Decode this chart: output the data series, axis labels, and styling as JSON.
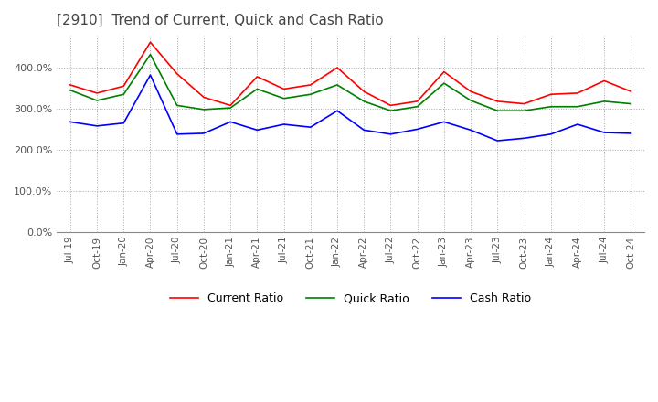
{
  "title": "[2910]  Trend of Current, Quick and Cash Ratio",
  "title_fontsize": 11,
  "title_color": "#444444",
  "background_color": "#ffffff",
  "plot_background_color": "#ffffff",
  "grid_color": "#aaaaaa",
  "ylim": [
    0,
    480
  ],
  "yticks": [
    0,
    100,
    200,
    300,
    400
  ],
  "ytick_labels": [
    "0.0%",
    "100.0%",
    "200.0%",
    "300.0%",
    "400.0%"
  ],
  "x_labels": [
    "Jul-19",
    "Oct-19",
    "Jan-20",
    "Apr-20",
    "Jul-20",
    "Oct-20",
    "Jan-21",
    "Apr-21",
    "Jul-21",
    "Oct-21",
    "Jan-22",
    "Apr-22",
    "Jul-22",
    "Oct-22",
    "Jan-23",
    "Apr-23",
    "Jul-23",
    "Oct-23",
    "Jan-24",
    "Apr-24",
    "Jul-24",
    "Oct-24"
  ],
  "current_ratio": [
    358,
    338,
    355,
    462,
    385,
    328,
    308,
    378,
    348,
    358,
    400,
    342,
    308,
    318,
    390,
    342,
    318,
    312,
    335,
    338,
    368,
    342
  ],
  "quick_ratio": [
    345,
    320,
    335,
    432,
    308,
    298,
    302,
    348,
    325,
    335,
    358,
    318,
    295,
    305,
    362,
    320,
    295,
    295,
    305,
    305,
    318,
    312
  ],
  "cash_ratio": [
    268,
    258,
    265,
    382,
    238,
    240,
    268,
    248,
    262,
    255,
    295,
    248,
    238,
    250,
    268,
    248,
    222,
    228,
    238,
    262,
    242,
    240
  ],
  "current_color": "#ff0000",
  "quick_color": "#008000",
  "cash_color": "#0000ff",
  "line_width": 1.2,
  "legend_labels": [
    "Current Ratio",
    "Quick Ratio",
    "Cash Ratio"
  ],
  "figsize": [
    7.2,
    4.4
  ],
  "dpi": 100
}
